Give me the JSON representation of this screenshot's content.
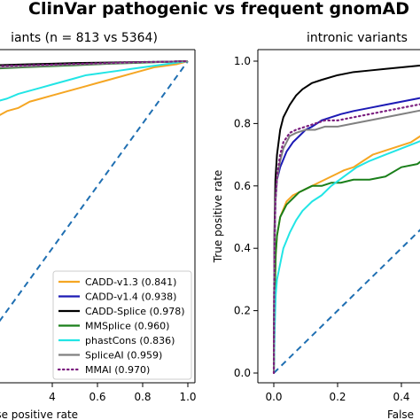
{
  "figure": {
    "title": "ClinVar pathogenic vs frequent gnomAD"
  },
  "chart_data": [
    {
      "type": "line",
      "title": "iants (n = 813 vs 5364)",
      "xlabel": "lse positive rate",
      "ylabel": "",
      "xlim": [
        0.0,
        1.0
      ],
      "ylim": [
        0.0,
        1.0
      ],
      "x_ticks": [
        "4",
        "0.6",
        "0.8",
        "1.0"
      ],
      "y_ticks": [],
      "grid": false,
      "legend_position": "lower-right",
      "series": [
        {
          "name": "CADD-v1.3 (0.841)",
          "color": "#f5a623",
          "dash": "solid",
          "x": [
            0.1,
            0.15,
            0.2,
            0.25,
            0.3,
            0.35,
            0.4,
            0.45,
            0.5,
            0.55,
            0.6,
            0.65,
            0.7,
            0.75,
            0.8,
            0.85,
            0.9,
            0.95,
            1.0
          ],
          "y": [
            0.81,
            0.82,
            0.84,
            0.85,
            0.87,
            0.88,
            0.89,
            0.9,
            0.91,
            0.92,
            0.93,
            0.94,
            0.95,
            0.96,
            0.97,
            0.98,
            0.985,
            0.99,
            1.0
          ]
        },
        {
          "name": "CADD-v1.4 (0.938)",
          "color": "#1c1ab5",
          "dash": "solid",
          "x": [
            0.1,
            0.2,
            0.3,
            0.4,
            0.5,
            0.6,
            0.7,
            0.8,
            0.9,
            1.0
          ],
          "y": [
            0.975,
            0.98,
            0.983,
            0.986,
            0.989,
            0.991,
            0.994,
            0.996,
            0.998,
            1.0
          ]
        },
        {
          "name": "CADD-Splice (0.978)",
          "color": "#000000",
          "dash": "solid",
          "x": [
            0.1,
            0.2,
            0.3,
            0.4,
            0.5,
            0.6,
            0.7,
            0.8,
            0.9,
            1.0
          ],
          "y": [
            0.985,
            0.988,
            0.99,
            0.992,
            0.994,
            0.995,
            0.996,
            0.997,
            0.998,
            1.0
          ]
        },
        {
          "name": "MMSplice (0.960)",
          "color": "#1a7f1a",
          "dash": "solid",
          "x": [
            0.1,
            0.2,
            0.3,
            0.4,
            0.5,
            0.6,
            0.7,
            0.8,
            0.9,
            1.0
          ],
          "y": [
            0.975,
            0.978,
            0.981,
            0.984,
            0.987,
            0.99,
            0.993,
            0.995,
            0.998,
            1.0
          ]
        },
        {
          "name": "phastCons (0.836)",
          "color": "#22e5e5",
          "dash": "solid",
          "x": [
            0.1,
            0.15,
            0.2,
            0.25,
            0.3,
            0.35,
            0.4,
            0.45,
            0.5,
            0.55,
            0.6,
            0.65,
            0.7,
            0.75,
            0.8,
            0.85,
            0.9,
            0.95,
            1.0
          ],
          "y": [
            0.85,
            0.87,
            0.88,
            0.895,
            0.905,
            0.915,
            0.925,
            0.935,
            0.945,
            0.955,
            0.96,
            0.965,
            0.97,
            0.975,
            0.98,
            0.985,
            0.99,
            0.995,
            1.0
          ]
        },
        {
          "name": "SpliceAI (0.959)",
          "color": "#808080",
          "dash": "solid",
          "x": [
            0.1,
            0.2,
            0.3,
            0.4,
            0.5,
            0.6,
            0.7,
            0.8,
            0.9,
            1.0
          ],
          "y": [
            0.978,
            0.98,
            0.983,
            0.986,
            0.989,
            0.991,
            0.994,
            0.996,
            0.998,
            1.0
          ]
        },
        {
          "name": "MMAI (0.970)",
          "color": "#7b1f7f",
          "dash": "dotted",
          "x": [
            0.1,
            0.2,
            0.3,
            0.4,
            0.5,
            0.6,
            0.7,
            0.8,
            0.9,
            1.0
          ],
          "y": [
            0.982,
            0.985,
            0.987,
            0.989,
            0.991,
            0.993,
            0.995,
            0.997,
            0.998,
            1.0
          ]
        }
      ],
      "reference_line": {
        "color": "#1f6fb2",
        "dash": "dashed",
        "x": [
          0.0,
          1.0
        ],
        "y": [
          0.0,
          1.0
        ]
      }
    },
    {
      "type": "line",
      "title": "intronic variants",
      "xlabel": "False",
      "ylabel": "True positive rate",
      "xlim": [
        -0.05,
        0.57
      ],
      "ylim": [
        -0.05,
        1.05
      ],
      "x_ticks": [
        "0.0",
        "0.2",
        "0.4"
      ],
      "y_ticks": [
        "0.0",
        "0.2",
        "0.4",
        "0.6",
        "0.8",
        "1.0"
      ],
      "grid": false,
      "series": [
        {
          "name": "CADD-v1.3 (0.841)",
          "color": "#f5a623",
          "dash": "solid",
          "x": [
            0.0,
            0.003,
            0.006,
            0.01,
            0.02,
            0.04,
            0.06,
            0.08,
            0.1,
            0.12,
            0.14,
            0.16,
            0.18,
            0.2,
            0.22,
            0.25,
            0.28,
            0.31,
            0.34,
            0.37,
            0.4,
            0.43,
            0.46,
            0.49,
            0.52,
            0.55,
            0.57
          ],
          "y": [
            0.0,
            0.25,
            0.38,
            0.44,
            0.5,
            0.55,
            0.57,
            0.58,
            0.59,
            0.6,
            0.61,
            0.62,
            0.63,
            0.64,
            0.65,
            0.66,
            0.68,
            0.7,
            0.71,
            0.72,
            0.73,
            0.74,
            0.76,
            0.78,
            0.8,
            0.81,
            0.82
          ]
        },
        {
          "name": "CADD-v1.4 (0.938)",
          "color": "#1c1ab5",
          "dash": "solid",
          "x": [
            0.0,
            0.002,
            0.005,
            0.01,
            0.02,
            0.04,
            0.06,
            0.08,
            0.1,
            0.12,
            0.15,
            0.18,
            0.21,
            0.25,
            0.3,
            0.35,
            0.4,
            0.45,
            0.5,
            0.55,
            0.57
          ],
          "y": [
            0.0,
            0.38,
            0.55,
            0.62,
            0.66,
            0.71,
            0.74,
            0.76,
            0.78,
            0.79,
            0.81,
            0.82,
            0.83,
            0.84,
            0.85,
            0.86,
            0.87,
            0.88,
            0.89,
            0.9,
            0.91
          ]
        },
        {
          "name": "CADD-Splice (0.978)",
          "color": "#000000",
          "dash": "solid",
          "x": [
            0.0,
            0.002,
            0.005,
            0.01,
            0.02,
            0.03,
            0.05,
            0.07,
            0.09,
            0.12,
            0.15,
            0.2,
            0.25,
            0.3,
            0.35,
            0.4,
            0.45,
            0.5,
            0.55,
            0.57
          ],
          "y": [
            0.0,
            0.45,
            0.62,
            0.7,
            0.78,
            0.82,
            0.86,
            0.89,
            0.91,
            0.93,
            0.94,
            0.955,
            0.965,
            0.97,
            0.975,
            0.98,
            0.985,
            0.99,
            0.995,
            0.997
          ]
        },
        {
          "name": "MMSplice (0.960)",
          "color": "#1a7f1a",
          "dash": "solid",
          "x": [
            0.0,
            0.003,
            0.006,
            0.01,
            0.02,
            0.04,
            0.06,
            0.08,
            0.1,
            0.12,
            0.15,
            0.18,
            0.21,
            0.25,
            0.3,
            0.35,
            0.4,
            0.45,
            0.5,
            0.53,
            0.57
          ],
          "y": [
            0.0,
            0.25,
            0.38,
            0.44,
            0.5,
            0.54,
            0.56,
            0.58,
            0.59,
            0.6,
            0.6,
            0.61,
            0.61,
            0.62,
            0.62,
            0.63,
            0.66,
            0.67,
            0.71,
            0.73,
            0.8
          ]
        },
        {
          "name": "phastCons (0.836)",
          "color": "#22e5e5",
          "dash": "solid",
          "x": [
            0.0,
            0.003,
            0.006,
            0.01,
            0.02,
            0.03,
            0.05,
            0.07,
            0.09,
            0.12,
            0.15,
            0.18,
            0.22,
            0.26,
            0.3,
            0.35,
            0.4,
            0.45,
            0.5,
            0.55,
            0.57
          ],
          "y": [
            0.0,
            0.15,
            0.25,
            0.3,
            0.35,
            0.4,
            0.45,
            0.49,
            0.52,
            0.55,
            0.57,
            0.6,
            0.63,
            0.66,
            0.68,
            0.7,
            0.72,
            0.74,
            0.76,
            0.77,
            0.78
          ]
        },
        {
          "name": "SpliceAI (0.959)",
          "color": "#808080",
          "dash": "solid",
          "x": [
            0.0,
            0.002,
            0.005,
            0.01,
            0.02,
            0.03,
            0.05,
            0.07,
            0.1,
            0.13,
            0.16,
            0.2,
            0.25,
            0.3,
            0.35,
            0.4,
            0.45,
            0.5,
            0.55,
            0.57
          ],
          "y": [
            0.0,
            0.4,
            0.55,
            0.62,
            0.68,
            0.72,
            0.76,
            0.77,
            0.78,
            0.78,
            0.79,
            0.79,
            0.8,
            0.81,
            0.82,
            0.83,
            0.84,
            0.85,
            0.86,
            0.87
          ]
        },
        {
          "name": "MMAI (0.970)",
          "color": "#7b1f7f",
          "dash": "dotted",
          "x": [
            0.0,
            0.002,
            0.005,
            0.01,
            0.02,
            0.03,
            0.05,
            0.07,
            0.1,
            0.13,
            0.16,
            0.2,
            0.25,
            0.3,
            0.35,
            0.4,
            0.45,
            0.5,
            0.55,
            0.57
          ],
          "y": [
            0.0,
            0.4,
            0.55,
            0.63,
            0.7,
            0.74,
            0.77,
            0.78,
            0.79,
            0.8,
            0.81,
            0.81,
            0.82,
            0.83,
            0.84,
            0.85,
            0.86,
            0.87,
            0.88,
            0.88
          ]
        }
      ],
      "reference_line": {
        "color": "#1f6fb2",
        "dash": "dashed",
        "x": [
          0.0,
          0.57
        ],
        "y": [
          0.0,
          0.57
        ]
      }
    }
  ]
}
